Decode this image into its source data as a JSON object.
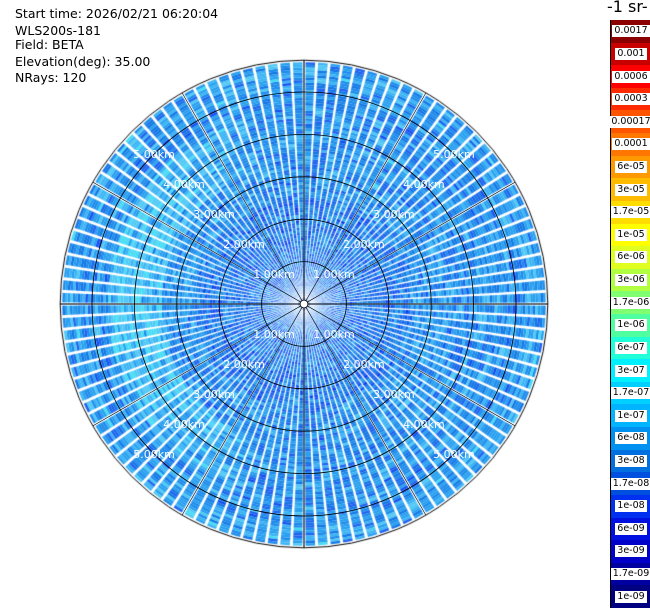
{
  "header": {
    "start_time": "Start time: 2026/02/21 06:20:04",
    "instrument": "WLS200s-181",
    "field": "Field: BETA",
    "elevation": "Elevation(deg): 35.00",
    "nrays": "NRays: 120"
  },
  "units_title": "-1 sr-",
  "chart_data": {
    "type": "heatmap",
    "subtype": "polar-ppi",
    "field": "BETA",
    "elevation_deg": 35.0,
    "n_rays": 120,
    "range_rings_km": [
      1,
      2,
      3,
      4,
      5
    ],
    "range_ring_labels": [
      "1.00km",
      "2.00km",
      "3.00km",
      "4.00km",
      "5.00km"
    ],
    "max_range_km": 5.75,
    "colorbar": {
      "labels_top_to_bottom": [
        "0.0017",
        "0.001",
        "0.0006",
        "0.0003",
        "0.00017",
        "0.0001",
        "6e-05",
        "3e-05",
        "1.7e-05",
        "1e-05",
        "6e-06",
        "3e-06",
        "1.7e-06",
        "1e-06",
        "6e-07",
        "3e-07",
        "1.7e-07",
        "1e-07",
        "6e-08",
        "3e-08",
        "1.7e-08",
        "1e-08",
        "6e-09",
        "3e-09",
        "1.7e-09",
        "1e-09"
      ],
      "colors_top_to_bottom": [
        "#8b0000",
        "#c80000",
        "#ff0000",
        "#ff2a00",
        "#ff5500",
        "#ff7700",
        "#ff9900",
        "#ffbb00",
        "#ffdd00",
        "#ffff00",
        "#e0ff20",
        "#b0ff40",
        "#80ff70",
        "#50ffa0",
        "#20ffd8",
        "#00f0ff",
        "#00d0ff",
        "#00b4ff",
        "#0090f0",
        "#0070e0",
        "#0050e0",
        "#0030f0",
        "#0010e0",
        "#0000c8",
        "#0000a0",
        "#000080"
      ]
    },
    "notes": "Plan position indicator: backscatter mostly 1e-08 to 1e-07 (blue/light-blue) across all ranges, with a lighter cyan band near 3.5-4.5 km on the left side."
  }
}
